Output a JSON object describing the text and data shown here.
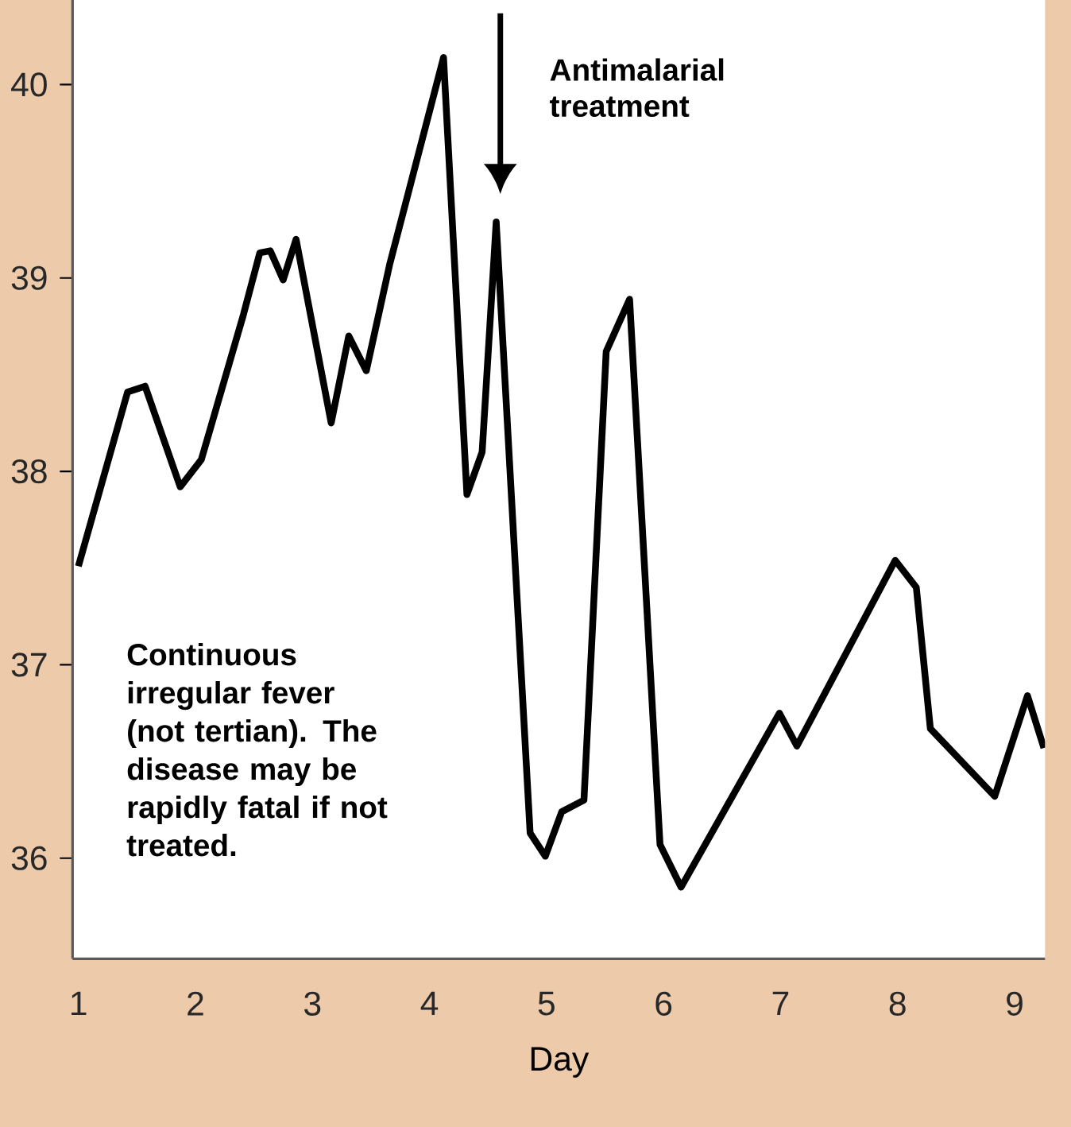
{
  "chart_data": {
    "type": "line",
    "xlabel": "Day",
    "x": [
      1.0,
      1.42,
      1.57,
      1.87,
      2.05,
      2.41,
      2.55,
      2.64,
      2.75,
      2.86,
      3.16,
      3.31,
      3.46,
      3.66,
      4.12,
      4.32,
      4.45,
      4.57,
      4.86,
      4.99,
      5.13,
      5.32,
      5.51,
      5.71,
      5.97,
      6.15,
      6.99,
      7.14,
      7.98,
      8.16,
      8.28,
      8.83,
      9.11,
      9.25
    ],
    "series": [
      {
        "color": "#000000",
        "values": [
          37.51,
          38.41,
          38.44,
          37.92,
          38.06,
          38.81,
          39.13,
          39.14,
          38.99,
          39.2,
          38.25,
          38.7,
          38.52,
          39.07,
          40.14,
          37.88,
          38.1,
          39.29,
          36.13,
          36.01,
          36.24,
          36.3,
          38.62,
          38.89,
          36.07,
          35.85,
          36.75,
          36.58,
          37.54,
          37.4,
          36.67,
          36.32,
          36.84,
          36.57
        ]
      }
    ],
    "xlim": [
      0.95,
      9.26
    ],
    "ylim": [
      35.48,
      40.51
    ],
    "xticks": [
      1,
      2,
      3,
      4,
      5,
      6,
      7,
      8,
      9
    ],
    "yticks": [
      36,
      37,
      38,
      39,
      40
    ],
    "marker": "none",
    "line_style": "solid",
    "grid": false,
    "annotations": [
      "Antimalarial treatment",
      "Continuous irregular fever (not tertian). The disease may be rapidly fatal if not treated."
    ]
  }
}
